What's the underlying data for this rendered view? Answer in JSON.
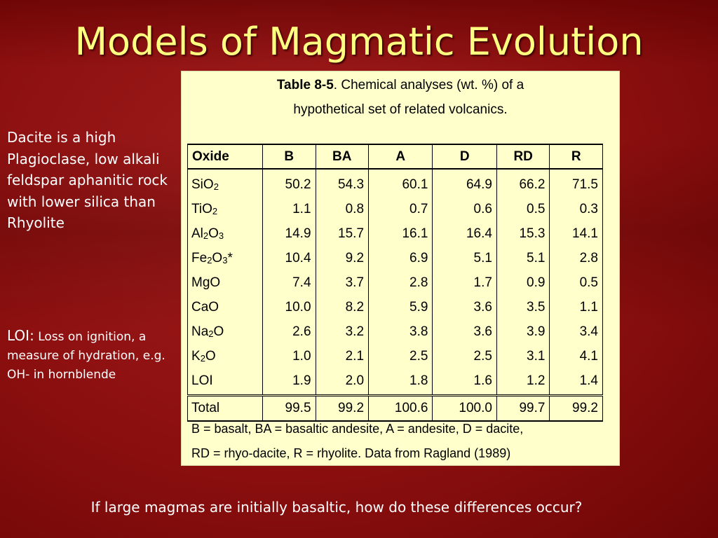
{
  "slide": {
    "title": "Models of Magmatic Evolution",
    "side_note_1": "Dacite is a high Plagioclase, low alkali feldspar aphanitic rock with lower silica than Rhyolite",
    "side_note_2_lead": "LOI:",
    "side_note_2_rest": " Loss on ignition, a measure of hydration, e.g. OH- in hornblende",
    "question": "If large magmas are initially basaltic, how do these differences occur?"
  },
  "table": {
    "caption_label": "Table 8-5",
    "caption_line1": ".  Chemical analyses (wt. %) of a",
    "caption_line2": "hypothetical set of related volcanics.",
    "headers": [
      "Oxide",
      "B",
      "BA",
      "A",
      "D",
      "RD",
      "R"
    ],
    "rows": [
      {
        "oxide": [
          "SiO",
          "2",
          ""
        ],
        "values": [
          "50.2",
          "54.3",
          "60.1",
          "64.9",
          "66.2",
          "71.5"
        ]
      },
      {
        "oxide": [
          "TiO",
          "2",
          ""
        ],
        "values": [
          "1.1",
          "0.8",
          "0.7",
          "0.6",
          "0.5",
          "0.3"
        ]
      },
      {
        "oxide": [
          "Al",
          "2",
          "O",
          "3",
          ""
        ],
        "values": [
          "14.9",
          "15.7",
          "16.1",
          "16.4",
          "15.3",
          "14.1"
        ]
      },
      {
        "oxide": [
          "Fe",
          "2",
          "O",
          "3",
          "*"
        ],
        "values": [
          "10.4",
          "9.2",
          "6.9",
          "5.1",
          "5.1",
          "2.8"
        ]
      },
      {
        "oxide": [
          "MgO"
        ],
        "values": [
          "7.4",
          "3.7",
          "2.8",
          "1.7",
          "0.9",
          "0.5"
        ]
      },
      {
        "oxide": [
          "CaO"
        ],
        "values": [
          "10.0",
          "8.2",
          "5.9",
          "3.6",
          "3.5",
          "1.1"
        ]
      },
      {
        "oxide": [
          "Na",
          "2",
          "O"
        ],
        "values": [
          "2.6",
          "3.2",
          "3.8",
          "3.6",
          "3.9",
          "3.4"
        ]
      },
      {
        "oxide": [
          "K",
          "2",
          "O"
        ],
        "values": [
          "1.0",
          "2.1",
          "2.5",
          "2.5",
          "3.1",
          "4.1"
        ]
      },
      {
        "oxide": [
          "LOI"
        ],
        "values": [
          "1.9",
          "2.0",
          "1.8",
          "1.6",
          "1.2",
          "1.4"
        ]
      }
    ],
    "total": {
      "label": "Total",
      "values": [
        "99.5",
        "99.2",
        "100.6",
        "100.0",
        "99.7",
        "99.2"
      ]
    },
    "footnote_line1": "B = basalt, BA = basaltic andesite, A = andesite, D = dacite,",
    "footnote_line2": "RD = rhyo-dacite,  R = rhyolite.   Data from Ragland (1989)"
  }
}
